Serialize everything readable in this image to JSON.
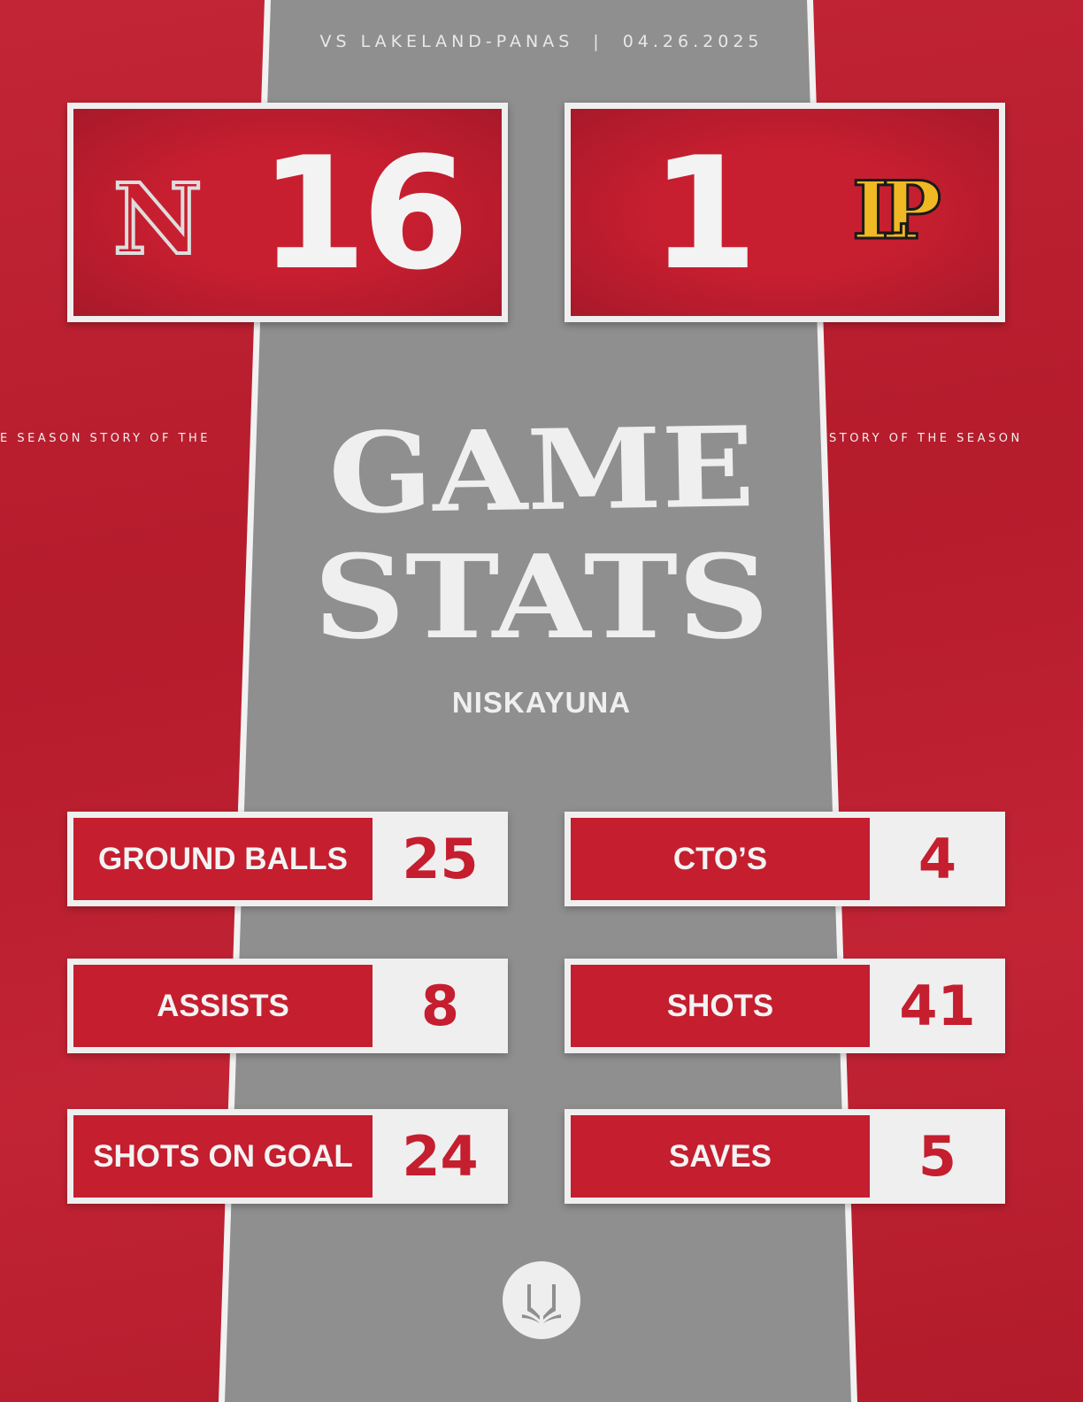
{
  "header": {
    "opponent": "VS LAKELAND-PANAS",
    "separator": "|",
    "date": "04.26.2025"
  },
  "scores": {
    "home": {
      "logo": "N",
      "score": "16"
    },
    "away": {
      "logo": "LP",
      "score": "1"
    }
  },
  "side_text": {
    "left": "E SEASON  STORY OF THE",
    "right": "STORY OF THE SEASON"
  },
  "title": {
    "line1": "GAME",
    "line2": "STATS"
  },
  "team": "NISKAYUNA",
  "stats": [
    {
      "label": "GROUND BALLS",
      "value": "25"
    },
    {
      "label": "CTO’S",
      "value": "4"
    },
    {
      "label": "ASSISTS",
      "value": "8"
    },
    {
      "label": "SHOTS",
      "value": "41"
    },
    {
      "label": "SHOTS ON GOAL",
      "value": "24"
    },
    {
      "label": "SAVES",
      "value": "5"
    }
  ],
  "colors": {
    "red": "#c41e2f",
    "gray": "#8f8f8f",
    "gold": "#f0b823"
  },
  "footer_icon": "open-book-icon"
}
